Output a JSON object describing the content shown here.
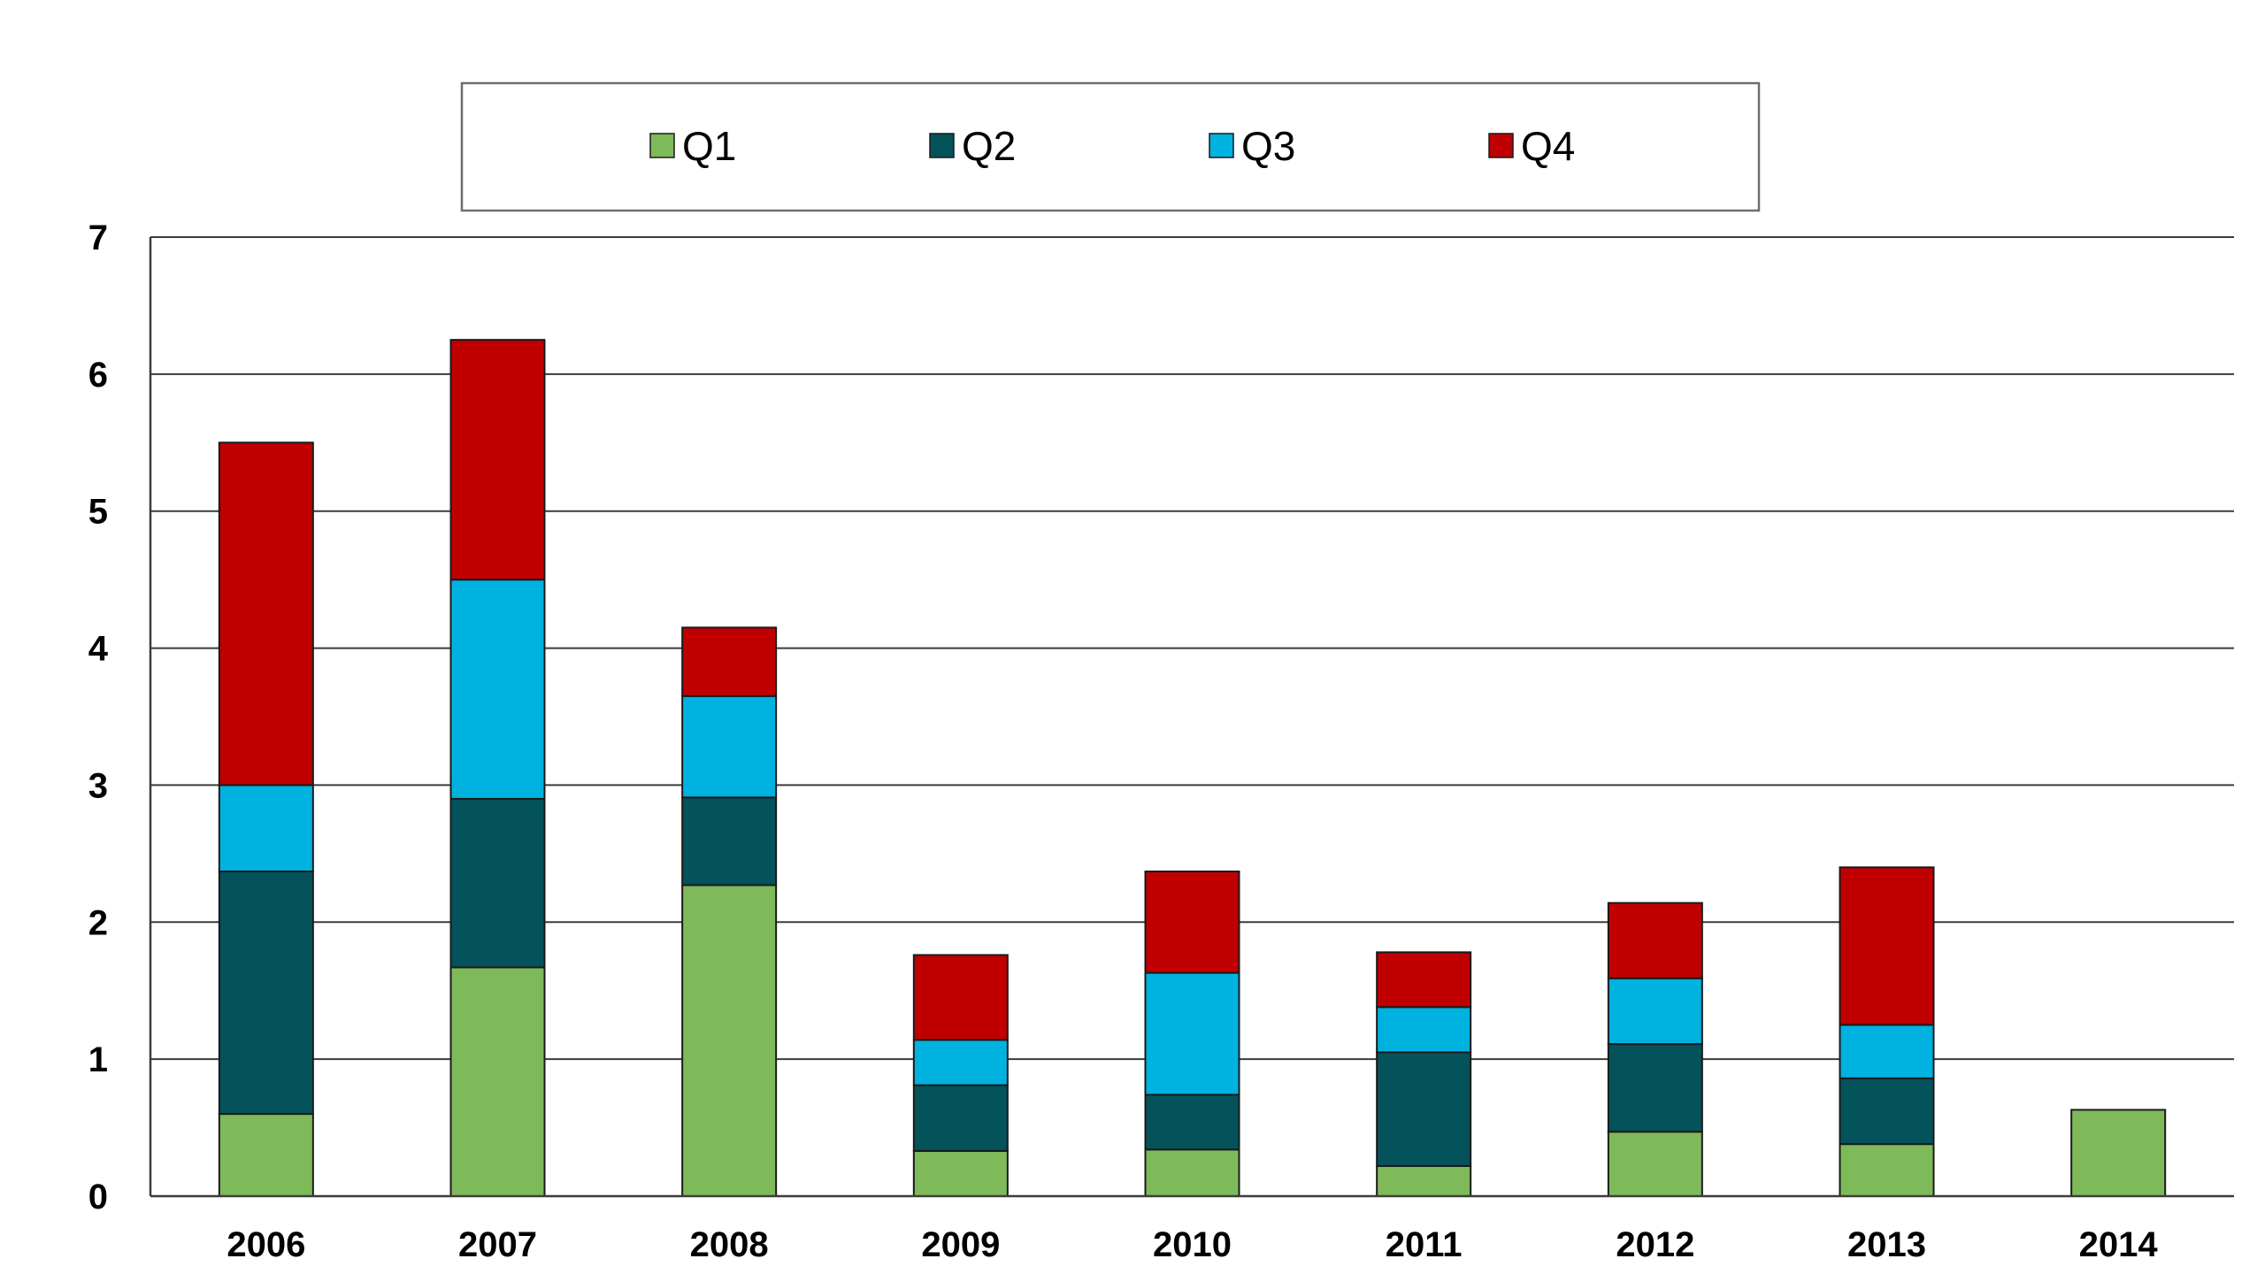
{
  "chart_data": {
    "type": "bar",
    "stacked": true,
    "title": "",
    "xlabel": "",
    "ylabel": "",
    "ylim": [
      0,
      7
    ],
    "yticks": [
      "0",
      "1",
      "2",
      "3",
      "4",
      "5",
      "6",
      "7"
    ],
    "grid": true,
    "legend_position": "top-center",
    "categories": [
      "2006",
      "2007",
      "2008",
      "2009",
      "2010",
      "2011",
      "2012",
      "2013",
      "2014"
    ],
    "series": [
      {
        "name": "Q1",
        "color": "#7fba5a",
        "values": [
          0.6,
          1.67,
          2.27,
          0.33,
          0.34,
          0.22,
          0.47,
          0.38,
          0.63
        ]
      },
      {
        "name": "Q2",
        "color": "#04525a",
        "values": [
          1.77,
          1.23,
          0.64,
          0.48,
          0.4,
          0.83,
          0.64,
          0.48,
          0
        ]
      },
      {
        "name": "Q3",
        "color": "#00b2e0",
        "values": [
          0.63,
          1.6,
          0.74,
          0.33,
          0.89,
          0.33,
          0.48,
          0.39,
          0
        ]
      },
      {
        "name": "Q4",
        "color": "#c00000",
        "values": [
          2.5,
          1.75,
          0.5,
          0.62,
          0.74,
          0.4,
          0.55,
          1.15,
          0
        ]
      }
    ]
  }
}
